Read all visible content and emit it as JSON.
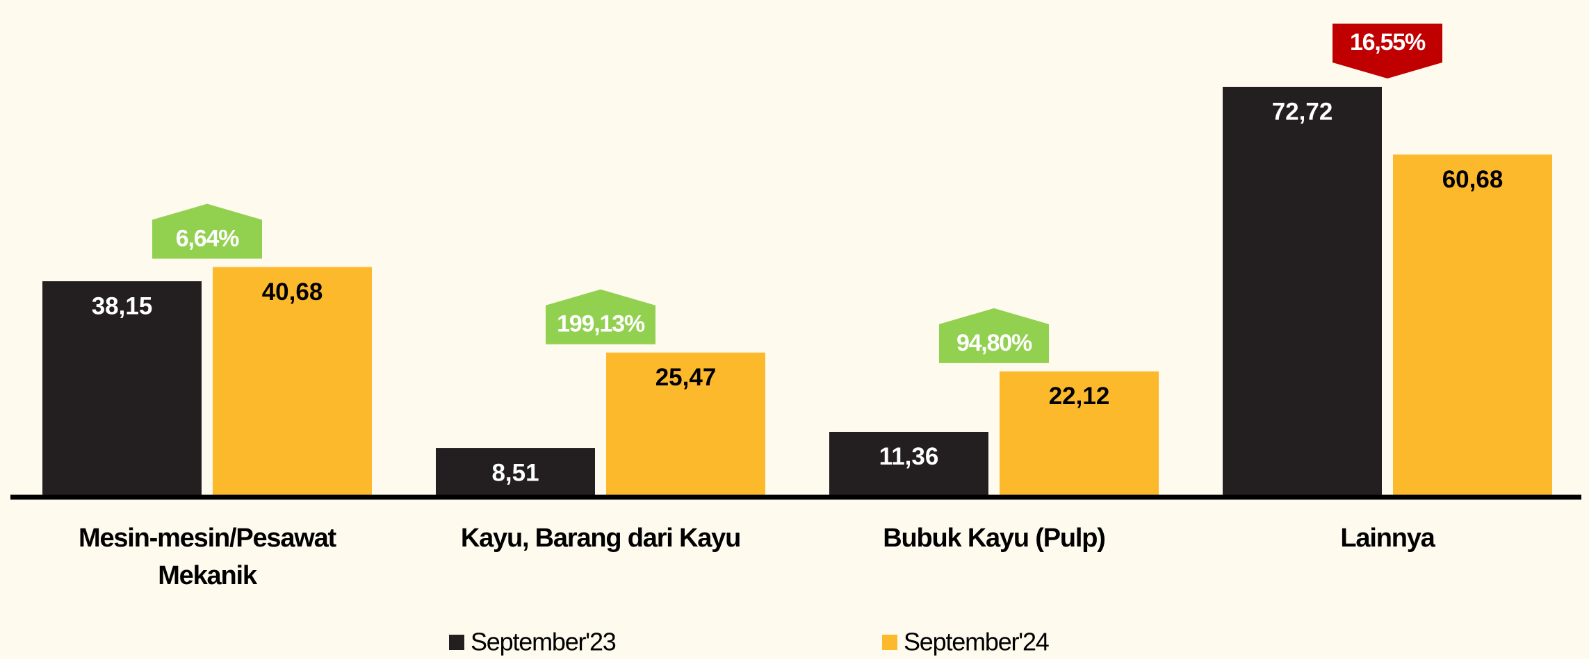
{
  "chart_data": {
    "type": "bar",
    "categories": [
      "Mesin-mesin/Pesawat Mekanik",
      "Kayu, Barang dari Kayu",
      "Bubuk Kayu (Pulp)",
      "Lainnya"
    ],
    "series": [
      {
        "name": "September'23",
        "color": "#231f20",
        "label_color": "#ffffff",
        "values": [
          38.15,
          8.51,
          11.36,
          72.72
        ],
        "value_labels": [
          "38,15",
          "8,51",
          "11,36",
          "72,72"
        ]
      },
      {
        "name": "September'24",
        "color": "#fdb92c",
        "label_color": "#000000",
        "values": [
          40.68,
          25.47,
          22.12,
          60.68
        ],
        "value_labels": [
          "40,68",
          "25,47",
          "22,12",
          "60,68"
        ]
      }
    ],
    "change": {
      "values": [
        6.64,
        199.13,
        94.8,
        16.55
      ],
      "value_labels": [
        "6,64%",
        "199,13%",
        "94,80%",
        "16,55%"
      ],
      "direction": [
        "up",
        "up",
        "up",
        "down"
      ],
      "colors": [
        "#92d050",
        "#92d050",
        "#92d050",
        "#c00000"
      ]
    },
    "legend": "bottom"
  }
}
